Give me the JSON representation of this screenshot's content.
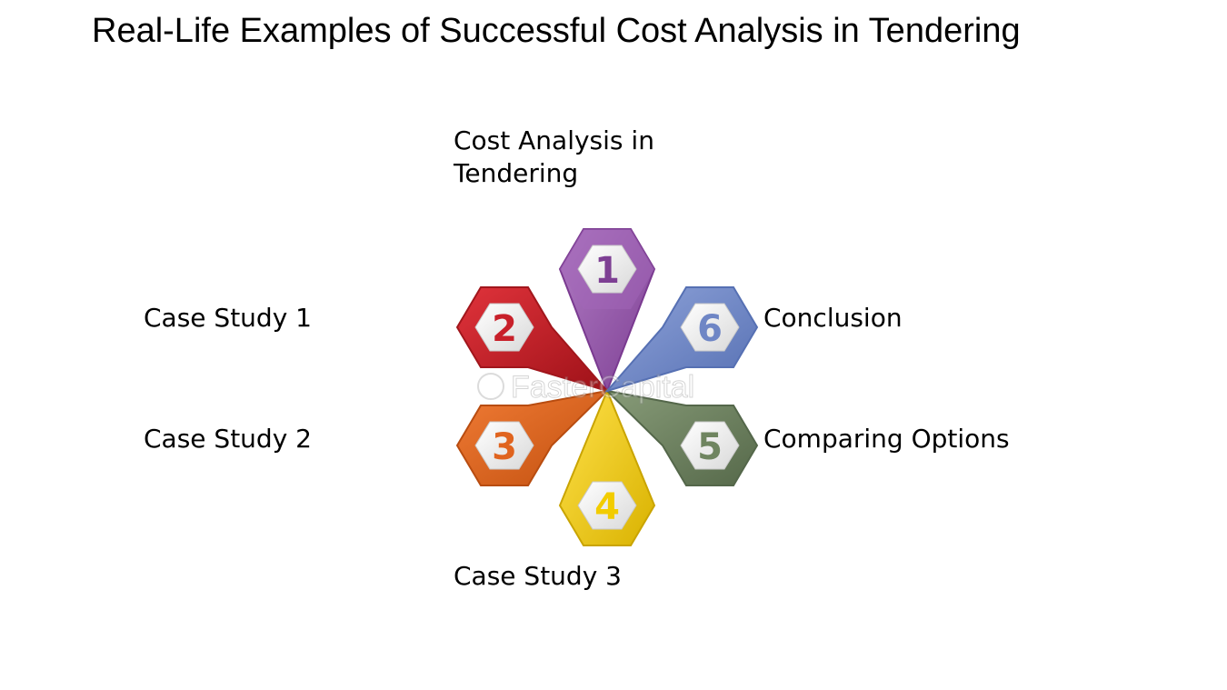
{
  "title": "Real-Life Examples of Successful Cost Analysis in Tendering",
  "items": [
    {
      "number": "1",
      "label": "Cost Analysis in Tendering",
      "color": "#9b5fb0"
    },
    {
      "number": "2",
      "label": "Case Study 1",
      "color": "#c8202a"
    },
    {
      "number": "3",
      "label": "Case Study 2",
      "color": "#e0641f"
    },
    {
      "number": "4",
      "label": "Case Study 3",
      "color": "#f2cc00"
    },
    {
      "number": "5",
      "label": "Comparing Options",
      "color": "#6f8560"
    },
    {
      "number": "6",
      "label": "Conclusion",
      "color": "#6f86c5"
    }
  ],
  "watermark": "FasterCapital"
}
